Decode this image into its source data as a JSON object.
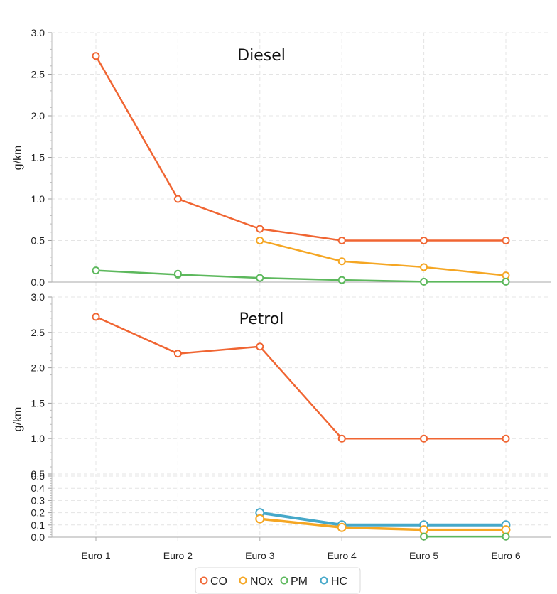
{
  "chart_data": {
    "type": "line",
    "categories": [
      "Euro 1",
      "Euro 2",
      "Euro 3",
      "Euro 4",
      "Euro 5",
      "Euro 6"
    ],
    "legend": {
      "position": "bottom",
      "items": [
        {
          "label": "CO",
          "color": "#f06532"
        },
        {
          "label": "NOx",
          "color": "#f5a623"
        },
        {
          "label": "PM",
          "color": "#5cb85c"
        },
        {
          "label": "HC",
          "color": "#46a8c9"
        }
      ]
    },
    "grid": true,
    "panels": [
      {
        "title": "Diesel",
        "ylabel": "g/km",
        "ylim": [
          0,
          3.0
        ],
        "yticks": [
          "0.0",
          "0.5",
          "1.0",
          "1.5",
          "2.0",
          "2.5",
          "3.0"
        ],
        "series": [
          {
            "name": "CO",
            "color": "#f06532",
            "values": [
              2.72,
              1.0,
              0.64,
              0.5,
              0.5,
              0.5
            ]
          },
          {
            "name": "NOx",
            "color": "#f5a623",
            "values": [
              null,
              null,
              0.5,
              0.25,
              0.18,
              0.08
            ]
          },
          {
            "name": "PM",
            "color": "#5cb85c",
            "values": [
              0.14,
              0.09,
              0.05,
              0.025,
              0.005,
              0.005
            ]
          },
          {
            "name": "PM",
            "color": "#5cb85c",
            "values": [
              null,
              0.1,
              null,
              null,
              null,
              null
            ]
          }
        ]
      },
      {
        "title": "Petrol",
        "ylabel": "g/km",
        "upper_ylim": [
          0.5,
          3.0
        ],
        "upper_yticks": [
          "0.5",
          "1.0",
          "1.5",
          "2.0",
          "2.5",
          "3.0"
        ],
        "lower_ylim": [
          0,
          0.5
        ],
        "lower_yticks": [
          "0.0",
          "0.1",
          "0.2",
          "0.3",
          "0.4",
          "0.5"
        ],
        "series": [
          {
            "name": "CO",
            "color": "#f06532",
            "values": [
              2.72,
              2.2,
              2.3,
              1.0,
              1.0,
              1.0
            ]
          },
          {
            "name": "HC",
            "color": "#46a8c9",
            "values": [
              null,
              null,
              0.2,
              0.1,
              0.1,
              0.1
            ]
          },
          {
            "name": "NOx",
            "color": "#f5a623",
            "values": [
              null,
              null,
              0.15,
              0.08,
              0.06,
              0.06
            ]
          },
          {
            "name": "PM",
            "color": "#5cb85c",
            "values": [
              null,
              null,
              null,
              null,
              0.005,
              0.005
            ]
          }
        ]
      }
    ]
  }
}
